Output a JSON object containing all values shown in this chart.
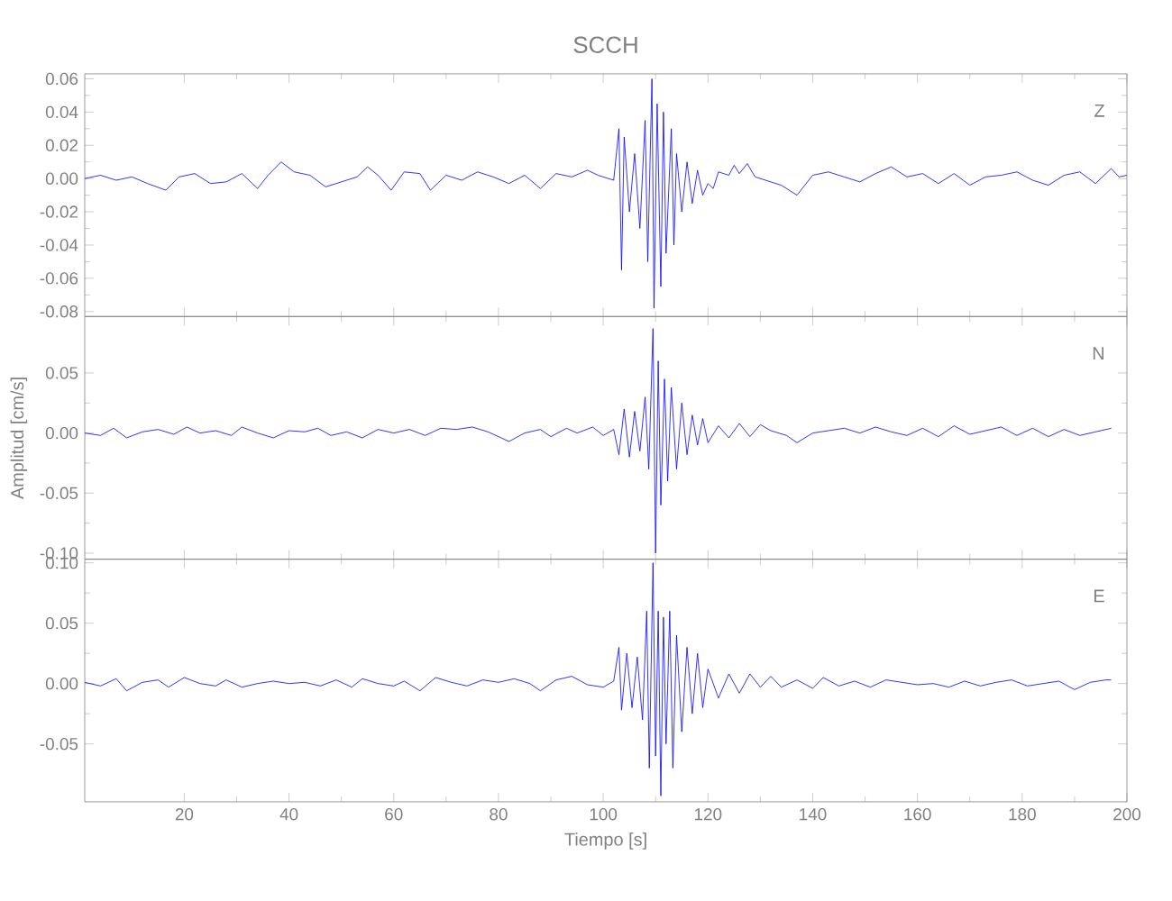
{
  "chart_data": [
    {
      "type": "line",
      "title": "SCCH",
      "xlim": [
        1,
        200
      ],
      "ylim": [
        -0.083,
        0.063
      ],
      "tick_labels": "y",
      "xticks": [
        20,
        40,
        60,
        80,
        100,
        120,
        140,
        160,
        180,
        200
      ],
      "yticks": [
        {
          "value": 0.06,
          "label": "0.06"
        },
        {
          "value": 0.04,
          "label": "0.04"
        },
        {
          "value": 0.02,
          "label": "0.02"
        },
        {
          "value": 0,
          "label": "0.00"
        },
        {
          "value": -0.02,
          "label": "-0.02"
        },
        {
          "value": -0.04,
          "label": "-0.04"
        },
        {
          "value": -0.06,
          "label": "-0.06"
        },
        {
          "value": -0.08,
          "label": "-0.08"
        }
      ],
      "series": [
        {
          "name": "Z",
          "color": "#0000ff",
          "x": [
            1,
            4,
            7,
            10,
            13,
            16.5,
            19,
            22,
            25,
            28,
            31,
            34,
            36,
            38.5,
            41,
            44,
            47,
            50,
            53,
            55,
            57,
            59.5,
            62,
            65,
            67,
            70,
            73,
            76,
            79,
            82,
            85,
            88,
            91,
            94,
            97,
            99,
            102,
            103,
            103.5,
            104,
            105,
            106,
            107,
            108,
            108.5,
            109.3,
            109.7,
            110.3,
            111,
            111.5,
            112,
            113,
            113.5,
            114,
            115,
            116,
            117,
            118,
            119,
            120,
            121,
            122,
            124,
            125,
            126,
            127.5,
            129,
            131,
            134,
            137,
            140,
            143,
            146,
            149,
            152,
            155,
            158,
            161,
            164,
            167,
            170,
            173,
            176,
            179,
            182,
            185,
            188,
            191,
            194,
            197,
            198.5,
            200
          ],
          "values": [
            0,
            0.002,
            -0.001,
            0.001,
            -0.003,
            -0.007,
            0.001,
            0.003,
            -0.003,
            -0.002,
            0.003,
            -0.006,
            0.002,
            0.01,
            0.004,
            0.002,
            -0.005,
            -0.002,
            0.001,
            0.007,
            0.002,
            -0.007,
            0.004,
            0.003,
            -0.007,
            0.002,
            -0.001,
            0.004,
            0.001,
            -0.003,
            0.002,
            -0.006,
            0.003,
            0.001,
            0.005,
            0.002,
            -0.001,
            0.03,
            -0.055,
            0.025,
            -0.02,
            0.015,
            -0.03,
            0.035,
            -0.05,
            0.06,
            -0.078,
            0.045,
            -0.065,
            0.04,
            -0.045,
            0.03,
            -0.04,
            0.015,
            -0.02,
            0.01,
            -0.015,
            0.005,
            -0.01,
            -0.003,
            -0.006,
            0.004,
            0.002,
            0.008,
            0.003,
            0.009,
            0.001,
            -0.001,
            -0.004,
            -0.01,
            0.002,
            0.004,
            0.001,
            -0.002,
            0.003,
            0.007,
            0.001,
            0.003,
            -0.003,
            0.003,
            -0.004,
            0.001,
            0.002,
            0.004,
            -0.001,
            -0.004,
            0.002,
            0.004,
            -0.003,
            0.006,
            0.001,
            0.002
          ]
        }
      ]
    },
    {
      "type": "line",
      "ylabel": "Amplitud [cm/s]",
      "xlim": [
        1,
        200
      ],
      "ylim": [
        -0.105,
        0.097
      ],
      "tick_labels": "y",
      "xticks": [
        20,
        40,
        60,
        80,
        100,
        120,
        140,
        160,
        180,
        200
      ],
      "yticks": [
        {
          "value": 0.05,
          "label": "0.05"
        },
        {
          "value": 0,
          "label": "0.00"
        },
        {
          "value": -0.05,
          "label": "-0.05"
        },
        {
          "value": -0.1,
          "label": "-0.10"
        }
      ],
      "series": [
        {
          "name": "N",
          "color": "#0000ff",
          "x": [
            1,
            4,
            6.5,
            9,
            12,
            15,
            18,
            20.5,
            23,
            26,
            29,
            31,
            34,
            37,
            40,
            43,
            45.5,
            48,
            51,
            54,
            57,
            60,
            63,
            66,
            69,
            72,
            75,
            78,
            80,
            82,
            85,
            88,
            90,
            93,
            95,
            98,
            100,
            102,
            103,
            104,
            105,
            106,
            107,
            108,
            108.7,
            109.5,
            110,
            110.5,
            111,
            111.7,
            112.3,
            113,
            114,
            115,
            116,
            117,
            118,
            119,
            120,
            122,
            124,
            126,
            128,
            130,
            132,
            135,
            137,
            140,
            143,
            146,
            149,
            152,
            155,
            158,
            161,
            164,
            167,
            170,
            173,
            176,
            179,
            182,
            185,
            188,
            191,
            194,
            197
          ],
          "values": [
            0,
            -0.002,
            0.004,
            -0.004,
            0.001,
            0.003,
            -0.001,
            0.005,
            0,
            0.002,
            -0.002,
            0.005,
            0,
            -0.004,
            0.002,
            0.001,
            0.004,
            -0.002,
            0.001,
            -0.004,
            0.003,
            0,
            0.003,
            -0.002,
            0.004,
            0.003,
            0.005,
            0.001,
            -0.003,
            -0.007,
            0,
            0.003,
            -0.003,
            0.004,
            0,
            0.005,
            -0.002,
            0.003,
            -0.018,
            0.02,
            -0.02,
            0.018,
            -0.015,
            0.03,
            -0.03,
            0.087,
            -0.1,
            0.06,
            -0.06,
            0.045,
            -0.04,
            0.038,
            -0.03,
            0.025,
            -0.018,
            0.015,
            -0.01,
            0.012,
            -0.008,
            0.006,
            -0.004,
            0.008,
            -0.003,
            0.007,
            0.002,
            -0.002,
            -0.008,
            0,
            0.002,
            0.004,
            0,
            0.005,
            0.001,
            -0.002,
            0.004,
            -0.003,
            0.006,
            -0.001,
            0.002,
            0.005,
            -0.002,
            0.004,
            -0.003,
            0.003,
            -0.002,
            0.001,
            0.004
          ]
        }
      ]
    },
    {
      "type": "line",
      "xlabel": "Tiempo [s]",
      "xlim": [
        1,
        200
      ],
      "ylim": [
        -0.098,
        0.103
      ],
      "xticks": [
        20,
        40,
        60,
        80,
        100,
        120,
        140,
        160,
        180,
        200
      ],
      "yticks": [
        {
          "value": 0.1,
          "label": "0.10"
        },
        {
          "value": 0.05,
          "label": "0.05"
        },
        {
          "value": 0,
          "label": "0.00"
        },
        {
          "value": -0.05,
          "label": "-0.05"
        }
      ],
      "series": [
        {
          "name": "E",
          "color": "#0000ff",
          "x": [
            1,
            4,
            7,
            9,
            12,
            15,
            17,
            20,
            23,
            26,
            28,
            31,
            34,
            37,
            40,
            43,
            46,
            49,
            52,
            54,
            57,
            60,
            62,
            65,
            68,
            71,
            74,
            77,
            80,
            83,
            86,
            88,
            91,
            94,
            97,
            100,
            102,
            103,
            103.5,
            104.5,
            105.5,
            106.5,
            107.5,
            108.3,
            108.8,
            109.5,
            110,
            110.5,
            111,
            111.5,
            112,
            112.7,
            113.3,
            114,
            115,
            116,
            117,
            118,
            119,
            120,
            122,
            124,
            126,
            128,
            130,
            132,
            134,
            137,
            140,
            142,
            145,
            148,
            151,
            154,
            157,
            160,
            163,
            166,
            169,
            172,
            175,
            178,
            181,
            184,
            187,
            190,
            193,
            196,
            197
          ],
          "values": [
            0.001,
            -0.002,
            0.004,
            -0.006,
            0.001,
            0.003,
            -0.003,
            0.005,
            0,
            -0.002,
            0.003,
            -0.003,
            0,
            0.002,
            0,
            0.001,
            -0.002,
            0.003,
            -0.003,
            0.004,
            0,
            -0.002,
            0.002,
            -0.006,
            0.005,
            0.001,
            -0.002,
            0.003,
            0.001,
            0.004,
            0,
            -0.006,
            0.003,
            0.006,
            -0.001,
            -0.003,
            0.002,
            0.03,
            -0.022,
            0.025,
            -0.02,
            0.022,
            -0.03,
            0.06,
            -0.07,
            0.1,
            -0.06,
            0.06,
            -0.093,
            0.055,
            -0.05,
            0.06,
            -0.07,
            0.04,
            -0.04,
            0.03,
            -0.025,
            0.025,
            -0.02,
            0.012,
            -0.012,
            0.008,
            -0.008,
            0.008,
            -0.003,
            0.006,
            -0.003,
            0.003,
            -0.004,
            0.005,
            -0.002,
            0.002,
            -0.003,
            0.003,
            0.001,
            -0.001,
            0,
            -0.003,
            0.002,
            -0.002,
            0.001,
            0.003,
            -0.002,
            0,
            0.002,
            -0.005,
            0.001,
            0.003,
            0.003
          ]
        }
      ]
    }
  ]
}
